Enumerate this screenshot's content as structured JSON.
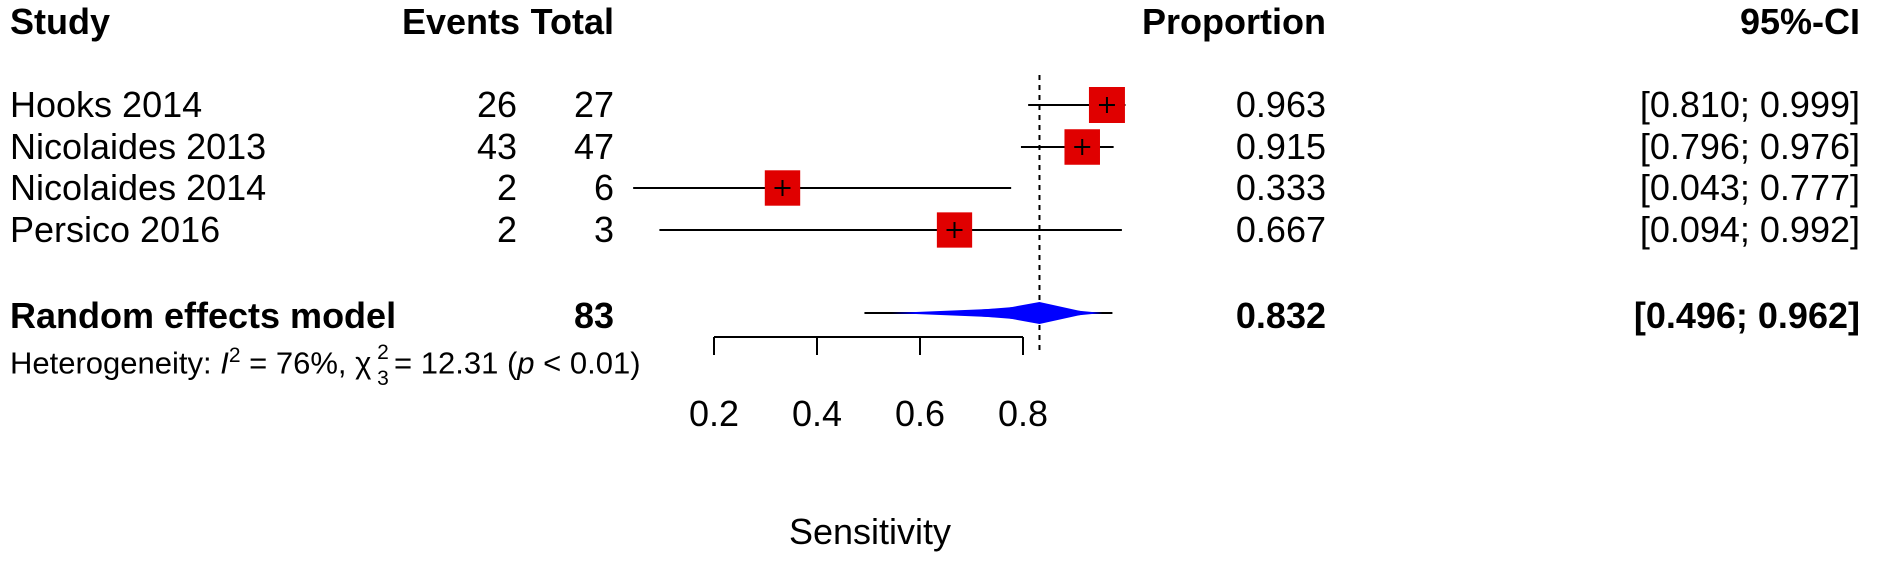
{
  "headers": {
    "study": "Study",
    "events": "Events",
    "total": "Total",
    "proportion": "Proportion",
    "ci": "95%-CI"
  },
  "studies": [
    {
      "study": "Hooks 2014",
      "events": "26",
      "total": "27",
      "proportion_text": "0.963",
      "ci_text": "[0.810; 0.999]"
    },
    {
      "study": "Nicolaides 2013",
      "events": "43",
      "total": "47",
      "proportion_text": "0.915",
      "ci_text": "[0.796; 0.976]"
    },
    {
      "study": "Nicolaides 2014",
      "events": "2",
      "total": "6",
      "proportion_text": "0.333",
      "ci_text": "[0.043; 0.777]"
    },
    {
      "study": "Persico 2016",
      "events": "2",
      "total": "3",
      "proportion_text": "0.667",
      "ci_text": "[0.094; 0.992]"
    }
  ],
  "pooled": {
    "label": "Random effects model",
    "total": "83",
    "proportion_text": "0.832",
    "ci_text": "[0.496; 0.962]"
  },
  "heterogeneity": {
    "prefix": "Heterogeneity: ",
    "i_symbol": "I",
    "i_sup": "2",
    "i_value": " = 76%, ",
    "chi_symbol": "χ",
    "chi_sup": "2",
    "chi_sub": "3",
    "chi_value": " = 12.31 (",
    "p_symbol": "p",
    "p_value": " < 0.01)"
  },
  "chart_data": {
    "type": "forest",
    "xlabel": "Sensitivity",
    "x_ticks": [
      0.2,
      0.4,
      0.6,
      0.8
    ],
    "x_tick_labels": [
      "0.2",
      "0.4",
      "0.6",
      "0.8"
    ],
    "reference_line": 0.832,
    "points": [
      {
        "study": "Hooks 2014",
        "proportion": 0.963,
        "ci_low": 0.81,
        "ci_high": 0.999,
        "weight": 1.0
      },
      {
        "study": "Nicolaides 2013",
        "proportion": 0.915,
        "ci_low": 0.796,
        "ci_high": 0.976,
        "weight": 0.92
      },
      {
        "study": "Nicolaides 2014",
        "proportion": 0.333,
        "ci_low": 0.043,
        "ci_high": 0.777,
        "weight": 0.9
      },
      {
        "study": "Persico 2016",
        "proportion": 0.667,
        "ci_low": 0.094,
        "ci_high": 0.992,
        "weight": 0.88
      }
    ],
    "pooled": {
      "proportion": 0.832,
      "ci_low": 0.496,
      "ci_high": 0.962
    },
    "marker_color": "#e00000",
    "pooled_color": "#0000ff"
  }
}
